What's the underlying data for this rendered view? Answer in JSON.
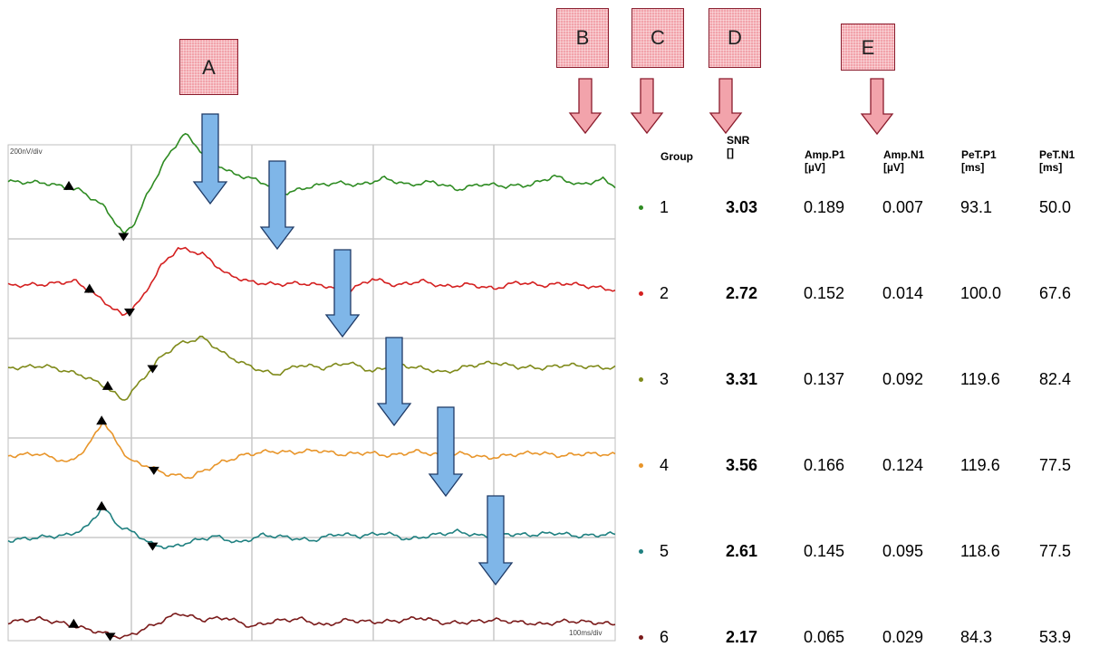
{
  "labels": {
    "A": "A",
    "B": "B",
    "C": "C",
    "D": "D",
    "E": "E"
  },
  "scale": {
    "y": "200nV/div",
    "x": "100ms/div"
  },
  "table": {
    "headers": {
      "group": "Group",
      "snr": [
        "SNR",
        "[]"
      ],
      "amp_p1": [
        "Amp.P1",
        "[µV]"
      ],
      "amp_n1": [
        "Amp.N1",
        "[µV]"
      ],
      "pet_p1": [
        "PeT.P1",
        "[ms]"
      ],
      "pet_n1": [
        "PeT.N1",
        "[ms]"
      ]
    },
    "rows": [
      {
        "group": "1",
        "snr": "3.03",
        "amp_p1": "0.189",
        "amp_n1": "0.007",
        "pet_p1": "93.1",
        "pet_n1": "50.0"
      },
      {
        "group": "2",
        "snr": "2.72",
        "amp_p1": "0.152",
        "amp_n1": "0.014",
        "pet_p1": "100.0",
        "pet_n1": "67.6"
      },
      {
        "group": "3",
        "snr": "3.31",
        "amp_p1": "0.137",
        "amp_n1": "0.092",
        "pet_p1": "119.6",
        "pet_n1": "82.4"
      },
      {
        "group": "4",
        "snr": "3.56",
        "amp_p1": "0.166",
        "amp_n1": "0.124",
        "pet_p1": "119.6",
        "pet_n1": "77.5"
      },
      {
        "group": "5",
        "snr": "2.61",
        "amp_p1": "0.145",
        "amp_n1": "0.095",
        "pet_p1": "118.6",
        "pet_n1": "77.5"
      },
      {
        "group": "6",
        "snr": "2.17",
        "amp_p1": "0.065",
        "amp_n1": "0.029",
        "pet_p1": "84.3",
        "pet_n1": "53.9"
      }
    ]
  },
  "chart_data": {
    "type": "line",
    "title": "",
    "x_range_ms": [
      0,
      500
    ],
    "grid": true,
    "series": [
      {
        "name": "1",
        "color": "#2e8b22",
        "t_ms": [
          0,
          30,
          60,
          80,
          95,
          105,
          115,
          130,
          145,
          165,
          185,
          200,
          215,
          230,
          250,
          270,
          290,
          310,
          330,
          350,
          370,
          390,
          410,
          430,
          450,
          470,
          490,
          500
        ],
        "v": [
          0.05,
          0.04,
          -0.03,
          -0.18,
          -0.42,
          -0.3,
          -0.05,
          0.25,
          0.48,
          0.25,
          0.12,
          0.08,
          0.02,
          -0.05,
          0.01,
          0.04,
          0.02,
          0.08,
          0.02,
          0.05,
          -0.02,
          0.03,
          0.01,
          0.02,
          0.1,
          0.02,
          0.07,
          0.01
        ]
      },
      {
        "name": "2",
        "color": "#d42020",
        "t_ms": [
          0,
          30,
          55,
          70,
          95,
          110,
          125,
          140,
          160,
          180,
          200,
          220,
          240,
          260,
          280,
          300,
          320,
          340,
          360,
          380,
          400,
          420,
          440,
          460,
          480,
          500
        ],
        "v": [
          0.02,
          0.03,
          0.06,
          -0.05,
          -0.25,
          -0.1,
          0.18,
          0.35,
          0.3,
          0.12,
          0.05,
          0.03,
          0.04,
          0.02,
          -0.03,
          0.08,
          0.02,
          0.06,
          0.01,
          0.03,
          -0.01,
          0.05,
          0.02,
          0.04,
          0.01,
          -0.02
        ]
      },
      {
        "name": "3",
        "color": "#7f8a1a",
        "t_ms": [
          0,
          30,
          60,
          80,
          95,
          110,
          125,
          140,
          160,
          180,
          200,
          220,
          240,
          260,
          280,
          300,
          320,
          340,
          360,
          380,
          400,
          420,
          440,
          460,
          480,
          500
        ],
        "v": [
          0.01,
          0.03,
          -0.05,
          -0.15,
          -0.28,
          -0.1,
          0.1,
          0.22,
          0.28,
          0.12,
          0.02,
          -0.05,
          0.04,
          0.01,
          0.06,
          -0.02,
          0.04,
          0.01,
          -0.03,
          0.03,
          0.06,
          0.02,
          0.01,
          0.04,
          0.02,
          0.01
        ]
      },
      {
        "name": "4",
        "color": "#e8952a",
        "t_ms": [
          0,
          25,
          50,
          65,
          78,
          88,
          100,
          115,
          130,
          150,
          175,
          195,
          215,
          235,
          255,
          275,
          295,
          315,
          335,
          355,
          375,
          395,
          415,
          435,
          455,
          475,
          500
        ],
        "v": [
          0.01,
          0.03,
          -0.05,
          0.08,
          0.32,
          0.15,
          -0.03,
          -0.08,
          -0.15,
          -0.18,
          -0.05,
          0.02,
          0.05,
          0.04,
          0.06,
          0.02,
          0.04,
          0.01,
          0.05,
          0.02,
          0.03,
          -0.01,
          0.02,
          0.04,
          0.01,
          0.03,
          0.02
        ]
      },
      {
        "name": "5",
        "color": "#1f8080",
        "t_ms": [
          0,
          25,
          50,
          65,
          78,
          90,
          105,
          120,
          135,
          150,
          170,
          190,
          210,
          230,
          250,
          270,
          290,
          310,
          330,
          350,
          370,
          390,
          410,
          430,
          450,
          470,
          500
        ],
        "v": [
          -0.02,
          0.01,
          0.03,
          0.1,
          0.28,
          0.12,
          0.04,
          -0.06,
          -0.08,
          -0.03,
          0.02,
          -0.04,
          0.03,
          0.01,
          -0.02,
          0.04,
          0.02,
          0.05,
          -0.01,
          0.03,
          0.06,
          0.02,
          0.04,
          0.03,
          0.05,
          0.02,
          0.04
        ]
      },
      {
        "name": "6",
        "color": "#7a1a1a",
        "t_ms": [
          0,
          25,
          45,
          60,
          80,
          95,
          110,
          125,
          140,
          160,
          180,
          200,
          220,
          240,
          260,
          280,
          300,
          320,
          340,
          360,
          380,
          400,
          420,
          440,
          460,
          480,
          500
        ],
        "v": [
          0.02,
          0.05,
          0.01,
          -0.03,
          -0.08,
          -0.12,
          -0.05,
          0.02,
          0.1,
          0.04,
          0.06,
          -0.02,
          0.03,
          0.05,
          -0.01,
          0.04,
          0.02,
          0.03,
          0.06,
          0.01,
          0.02,
          0.04,
          0.02,
          0.0,
          0.03,
          0.02,
          0.0
        ]
      }
    ],
    "markers": [
      {
        "series": "1",
        "up_ms": 50,
        "down_ms": 95
      },
      {
        "series": "2",
        "up_ms": 67,
        "down_ms": 100
      },
      {
        "series": "3",
        "up_ms": 82,
        "down_ms": 119
      },
      {
        "series": "4",
        "up_ms": 77,
        "down_ms": 120
      },
      {
        "series": "5",
        "up_ms": 77,
        "down_ms": 119
      },
      {
        "series": "6",
        "up_ms": 54,
        "down_ms": 84
      }
    ],
    "colors": {
      "grid": "#c8c8c8",
      "arrow_blue": "#7fb6e8",
      "box_pink": "#f2a3ab"
    }
  }
}
